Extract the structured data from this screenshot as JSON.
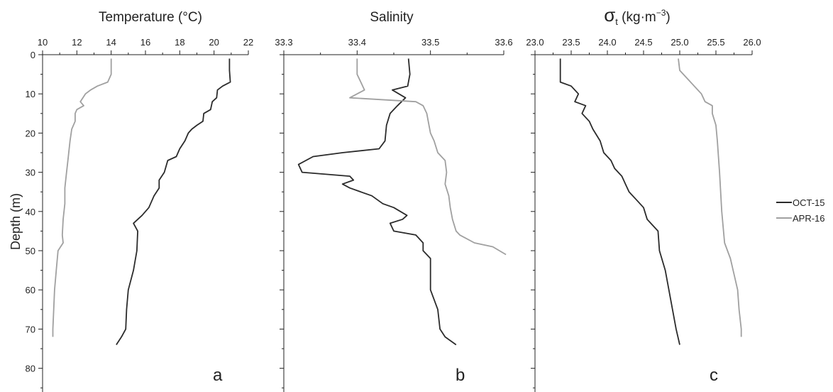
{
  "chart_data": [
    {
      "type": "line",
      "panel_letter": "a",
      "title": "Temperature (°C)",
      "ylabel": "Depth (m)",
      "xlim": [
        10,
        22
      ],
      "xticks": [
        "10",
        "12",
        "14",
        "16",
        "18",
        "20",
        "22"
      ],
      "ylim": [
        0,
        85
      ],
      "yticks": [
        "0",
        "10",
        "20",
        "30",
        "40",
        "50",
        "60",
        "70",
        "80"
      ],
      "y_inverted": true,
      "series": [
        {
          "name": "OCT-15",
          "color": "#2b2b2b",
          "points": [
            [
              20.9,
              1
            ],
            [
              20.9,
              4
            ],
            [
              20.95,
              7
            ],
            [
              20.5,
              8
            ],
            [
              20.2,
              9
            ],
            [
              20.15,
              11
            ],
            [
              19.9,
              12
            ],
            [
              19.8,
              14
            ],
            [
              19.4,
              15
            ],
            [
              19.35,
              17
            ],
            [
              19.0,
              18
            ],
            [
              18.7,
              19
            ],
            [
              18.5,
              20
            ],
            [
              18.3,
              22
            ],
            [
              18.0,
              24
            ],
            [
              17.8,
              26
            ],
            [
              17.3,
              27
            ],
            [
              17.1,
              30
            ],
            [
              16.8,
              32
            ],
            [
              16.8,
              34
            ],
            [
              16.5,
              36
            ],
            [
              16.2,
              39
            ],
            [
              15.8,
              41
            ],
            [
              15.3,
              43
            ],
            [
              15.55,
              45
            ],
            [
              15.5,
              50
            ],
            [
              15.3,
              55
            ],
            [
              15.0,
              60
            ],
            [
              14.9,
              65
            ],
            [
              14.85,
              70
            ],
            [
              14.6,
              72
            ],
            [
              14.3,
              74
            ]
          ]
        },
        {
          "name": "APR-16",
          "color": "#a0a0a0",
          "points": [
            [
              14.0,
              1
            ],
            [
              14.0,
              5
            ],
            [
              13.8,
              7
            ],
            [
              13.2,
              8
            ],
            [
              12.8,
              9
            ],
            [
              12.5,
              10
            ],
            [
              12.2,
              12
            ],
            [
              12.4,
              13
            ],
            [
              12.0,
              14
            ],
            [
              11.9,
              15
            ],
            [
              11.9,
              17
            ],
            [
              11.7,
              19
            ],
            [
              11.6,
              22
            ],
            [
              11.5,
              26
            ],
            [
              11.4,
              30
            ],
            [
              11.3,
              34
            ],
            [
              11.3,
              38
            ],
            [
              11.2,
              42
            ],
            [
              11.15,
              46
            ],
            [
              11.2,
              48
            ],
            [
              10.9,
              50
            ],
            [
              10.8,
              55
            ],
            [
              10.7,
              60
            ],
            [
              10.65,
              65
            ],
            [
              10.6,
              70
            ],
            [
              10.6,
              72
            ]
          ]
        }
      ]
    },
    {
      "type": "line",
      "panel_letter": "b",
      "title": "Salinity",
      "xlim": [
        33.3,
        33.6
      ],
      "xticks": [
        "33.3",
        "33.4",
        "33.5",
        "33.6"
      ],
      "ylim": [
        0,
        85
      ],
      "y_inverted": true,
      "series": [
        {
          "name": "OCT-15",
          "color": "#2b2b2b",
          "points": [
            [
              33.47,
              1
            ],
            [
              33.472,
              5
            ],
            [
              33.469,
              8
            ],
            [
              33.448,
              9
            ],
            [
              33.457,
              10
            ],
            [
              33.466,
              11
            ],
            [
              33.455,
              13
            ],
            [
              33.445,
              15
            ],
            [
              33.44,
              18
            ],
            [
              33.438,
              22
            ],
            [
              33.43,
              24
            ],
            [
              33.38,
              25
            ],
            [
              33.34,
              26
            ],
            [
              33.32,
              28
            ],
            [
              33.325,
              30
            ],
            [
              33.39,
              31
            ],
            [
              33.395,
              32
            ],
            [
              33.38,
              33
            ],
            [
              33.39,
              34
            ],
            [
              33.42,
              36
            ],
            [
              33.435,
              38
            ],
            [
              33.45,
              39
            ],
            [
              33.468,
              41
            ],
            [
              33.462,
              42
            ],
            [
              33.445,
              43
            ],
            [
              33.45,
              45
            ],
            [
              33.48,
              46
            ],
            [
              33.49,
              48
            ],
            [
              33.49,
              50
            ],
            [
              33.5,
              52
            ],
            [
              33.5,
              60
            ],
            [
              33.51,
              65
            ],
            [
              33.513,
              70
            ],
            [
              33.52,
              72
            ],
            [
              33.535,
              74
            ]
          ]
        },
        {
          "name": "APR-16",
          "color": "#a0a0a0",
          "points": [
            [
              33.4,
              1
            ],
            [
              33.4,
              5
            ],
            [
              33.405,
              7
            ],
            [
              33.41,
              9
            ],
            [
              33.4,
              10
            ],
            [
              33.39,
              11
            ],
            [
              33.48,
              12
            ],
            [
              33.49,
              13
            ],
            [
              33.495,
              15
            ],
            [
              33.498,
              18
            ],
            [
              33.5,
              20
            ],
            [
              33.505,
              22
            ],
            [
              33.51,
              25
            ],
            [
              33.52,
              27
            ],
            [
              33.522,
              30
            ],
            [
              33.52,
              33
            ],
            [
              33.525,
              36
            ],
            [
              33.527,
              39
            ],
            [
              33.53,
              42
            ],
            [
              33.535,
              45
            ],
            [
              33.54,
              46
            ],
            [
              33.56,
              48
            ],
            [
              33.585,
              49
            ],
            [
              33.603,
              51
            ]
          ]
        }
      ]
    },
    {
      "type": "line",
      "panel_letter": "c",
      "title_main": "σ",
      "title_sub": "t",
      "title_units": " (kg·m",
      "title_exp": "−3",
      "title_close": ")",
      "xlim": [
        23.0,
        26.0
      ],
      "xticks": [
        "23.0",
        "23.5",
        "24.0",
        "24.5",
        "25.0",
        "25.5",
        "26.0"
      ],
      "ylim": [
        0,
        85
      ],
      "y_inverted": true,
      "series": [
        {
          "name": "OCT-15",
          "color": "#2b2b2b",
          "points": [
            [
              23.35,
              1
            ],
            [
              23.35,
              7
            ],
            [
              23.5,
              8
            ],
            [
              23.6,
              10
            ],
            [
              23.55,
              12
            ],
            [
              23.7,
              13
            ],
            [
              23.65,
              15
            ],
            [
              23.75,
              17
            ],
            [
              23.8,
              19
            ],
            [
              23.9,
              22
            ],
            [
              23.95,
              25
            ],
            [
              24.05,
              27
            ],
            [
              24.1,
              29
            ],
            [
              24.2,
              31
            ],
            [
              24.25,
              33
            ],
            [
              24.3,
              35
            ],
            [
              24.4,
              37
            ],
            [
              24.5,
              39
            ],
            [
              24.55,
              42
            ],
            [
              24.6,
              43
            ],
            [
              24.7,
              45
            ],
            [
              24.72,
              50
            ],
            [
              24.8,
              55
            ],
            [
              24.85,
              60
            ],
            [
              24.9,
              65
            ],
            [
              24.95,
              70
            ],
            [
              25.0,
              74
            ]
          ]
        },
        {
          "name": "APR-16",
          "color": "#a0a0a0",
          "points": [
            [
              24.98,
              1
            ],
            [
              25.0,
              4
            ],
            [
              25.1,
              6
            ],
            [
              25.2,
              8
            ],
            [
              25.3,
              10
            ],
            [
              25.35,
              12
            ],
            [
              25.45,
              13
            ],
            [
              25.45,
              15
            ],
            [
              25.5,
              18
            ],
            [
              25.52,
              22
            ],
            [
              25.55,
              30
            ],
            [
              25.58,
              40
            ],
            [
              25.62,
              48
            ],
            [
              25.7,
              52
            ],
            [
              25.75,
              56
            ],
            [
              25.8,
              60
            ],
            [
              25.82,
              65
            ],
            [
              25.85,
              70
            ],
            [
              25.85,
              72
            ]
          ]
        }
      ]
    }
  ],
  "legend": {
    "items": [
      {
        "label": "OCT-15",
        "color": "#2b2b2b"
      },
      {
        "label": "APR-16",
        "color": "#a0a0a0"
      }
    ],
    "placement": "right"
  }
}
